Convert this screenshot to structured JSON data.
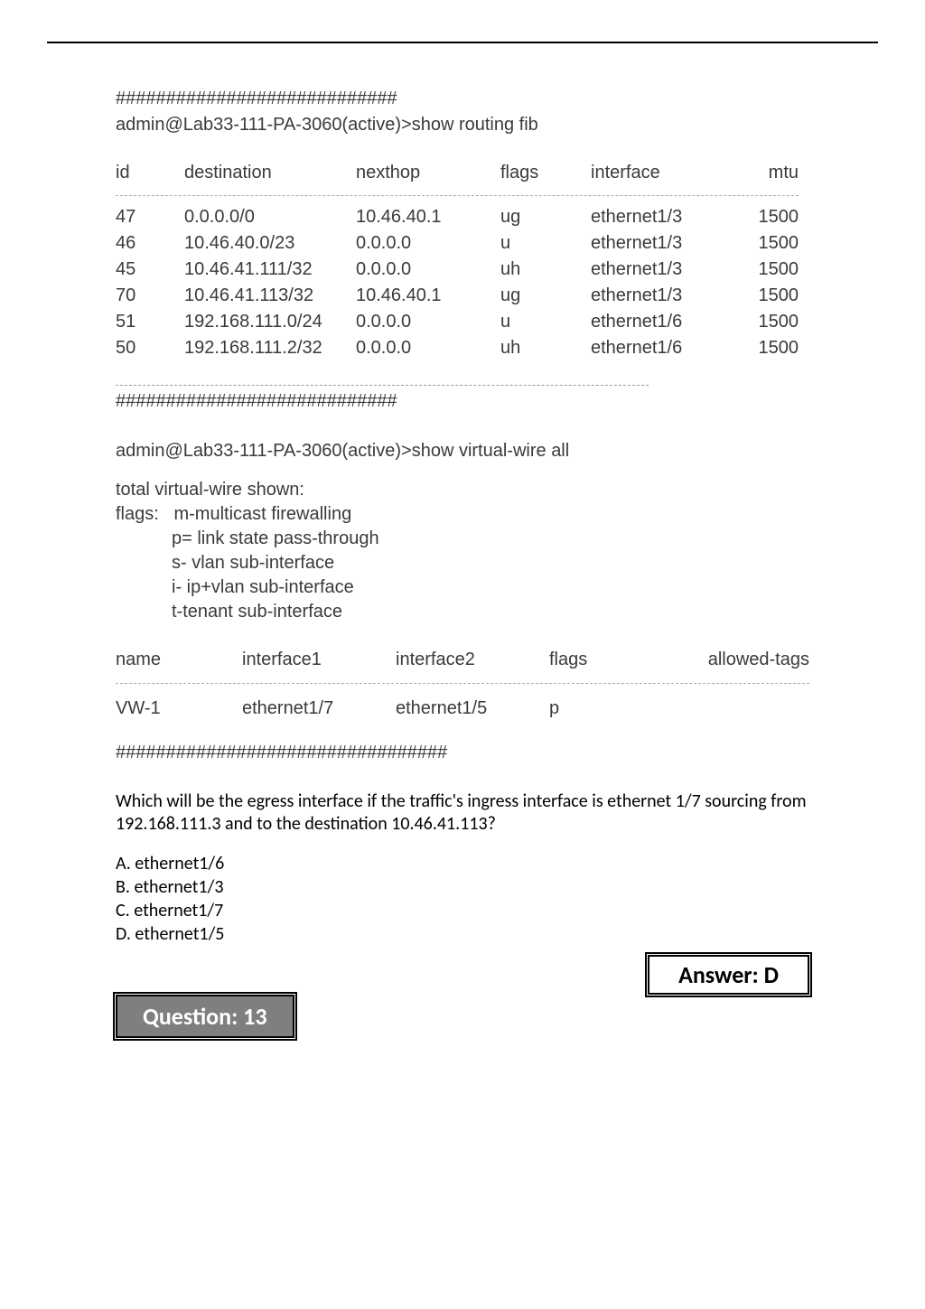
{
  "cli": {
    "hashes1": "############################",
    "cmd1": "admin@Lab33-111-PA-3060(active)>show routing fib",
    "fib": {
      "headers": {
        "id": "id",
        "dest": "destination",
        "next": "nexthop",
        "flags": "flags",
        "intf": "interface",
        "mtu": "mtu"
      },
      "rows": [
        {
          "id": "47",
          "dest": "0.0.0.0/0",
          "next": "10.46.40.1",
          "flags": "ug",
          "intf": "ethernet1/3",
          "mtu": "1500"
        },
        {
          "id": "46",
          "dest": "10.46.40.0/23",
          "next": "0.0.0.0",
          "flags": "u",
          "intf": "ethernet1/3",
          "mtu": "1500"
        },
        {
          "id": "45",
          "dest": "10.46.41.111/32",
          "next": "0.0.0.0",
          "flags": "uh",
          "intf": "ethernet1/3",
          "mtu": "1500"
        },
        {
          "id": "70",
          "dest": "10.46.41.113/32",
          "next": "10.46.40.1",
          "flags": "ug",
          "intf": "ethernet1/3",
          "mtu": "1500"
        },
        {
          "id": "51",
          "dest": "192.168.111.0/24",
          "next": "0.0.0.0",
          "flags": "u",
          "intf": "ethernet1/6",
          "mtu": "1500"
        },
        {
          "id": "50",
          "dest": "192.168.111.2/32",
          "next": "0.0.0.0",
          "flags": "uh",
          "intf": "ethernet1/6",
          "mtu": "1500"
        }
      ]
    },
    "hashes2": "############################",
    "cmd2": "admin@Lab33-111-PA-3060(active)>show virtual-wire all",
    "vw_intro": "total virtual-wire shown:",
    "flags_label": "flags:",
    "flag_lines": {
      "m": "m-multicast firewalling",
      "p": "p= link state pass-through",
      "s": "s- vlan sub-interface",
      "i": "i- ip+vlan sub-interface",
      "t": "t-tenant sub-interface"
    },
    "vw": {
      "headers": {
        "name": "name",
        "if1": "interface1",
        "if2": "interface2",
        "flags": "flags",
        "tags": "allowed-tags"
      },
      "row": {
        "name": "VW-1",
        "if1": "ethernet1/7",
        "if2": "ethernet1/5",
        "flags": "p",
        "tags": ""
      }
    },
    "hashes3": "#################################"
  },
  "question": {
    "text": "Which will be the egress interface if the traffic's ingress interface is ethernet 1/7 sourcing from 192.168.111.3 and to the destination 10.46.41.113?",
    "options": {
      "a": "A. ethernet1/6",
      "b": "B. ethernet1/3",
      "c": "C. ethernet1/7",
      "d": "D. ethernet1/5"
    },
    "answer": "Answer: D",
    "next_label": "Question: 13"
  }
}
